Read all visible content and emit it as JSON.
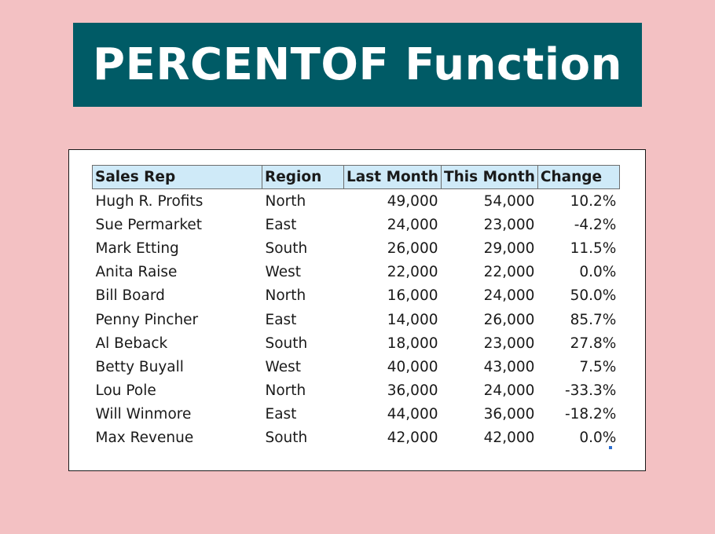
{
  "title": "PERCENTOF Function",
  "table": {
    "headers": [
      "Sales Rep",
      "Region",
      "Last Month",
      "This Month",
      "Change"
    ],
    "rows": [
      [
        "Hugh R. Profits",
        "North",
        "49,000",
        "54,000",
        "10.2%"
      ],
      [
        "Sue Permarket",
        "East",
        "24,000",
        "23,000",
        "-4.2%"
      ],
      [
        "Mark Etting",
        "South",
        "26,000",
        "29,000",
        "11.5%"
      ],
      [
        "Anita Raise",
        "West",
        "22,000",
        "22,000",
        "0.0%"
      ],
      [
        "Bill Board",
        "North",
        "16,000",
        "24,000",
        "50.0%"
      ],
      [
        "Penny Pincher",
        "East",
        "14,000",
        "26,000",
        "85.7%"
      ],
      [
        "Al Beback",
        "South",
        "18,000",
        "23,000",
        "27.8%"
      ],
      [
        "Betty Buyall",
        "West",
        "40,000",
        "43,000",
        "7.5%"
      ],
      [
        "Lou Pole",
        "North",
        "36,000",
        "24,000",
        "-33.3%"
      ],
      [
        "Will Winmore",
        "East",
        "44,000",
        "36,000",
        "-18.2%"
      ],
      [
        "Max Revenue",
        "South",
        "42,000",
        "42,000",
        "0.0%"
      ]
    ]
  },
  "colors": {
    "background": "#f3c1c3",
    "banner": "#005b66",
    "header_fill": "#cfeaf8"
  }
}
